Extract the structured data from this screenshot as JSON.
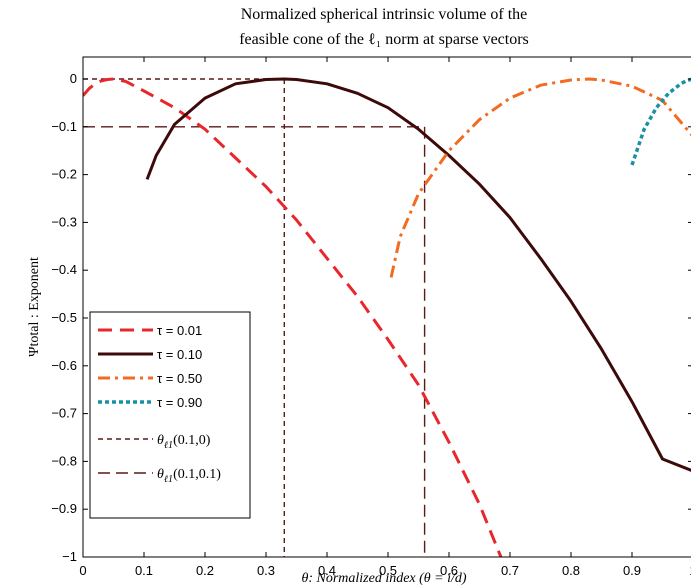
{
  "chart_data": {
    "type": "line",
    "title_lines": [
      "Normalized spherical intrinsic volume of the",
      "feasible cone of the ℓ₁ norm at sparse vectors"
    ],
    "xlabel": "θ: Normalized index (θ = i/d)",
    "ylabel": "Ψtotal : Exponent",
    "xlim": [
      0,
      1
    ],
    "ylim": [
      -1,
      0.1
    ],
    "x_ticks": [
      "0",
      "0.1",
      "0.2",
      "0.3",
      "0.4",
      "0.5",
      "0.6",
      "0.7",
      "0.8",
      "0.9",
      "1"
    ],
    "y_ticks": [
      "0",
      "-0.1",
      "-0.2",
      "-0.3",
      "-0.4",
      "-0.5",
      "-0.6",
      "-0.7",
      "-0.8",
      "-0.9",
      "-1"
    ],
    "grid": false,
    "legend_position": "bottom-left",
    "series": [
      {
        "name": "τ = 0.01",
        "color": "#e8272c",
        "dash": "dashed",
        "x": [
          0.0,
          0.01,
          0.02,
          0.03,
          0.04,
          0.05,
          0.07,
          0.1,
          0.15,
          0.2,
          0.25,
          0.3,
          0.35,
          0.4,
          0.45,
          0.5,
          0.55,
          0.6,
          0.65,
          0.685
        ],
        "y": [
          -0.035,
          -0.02,
          -0.01,
          -0.004,
          -0.001,
          0.0,
          -0.005,
          -0.025,
          -0.06,
          -0.105,
          -0.165,
          -0.225,
          -0.295,
          -0.375,
          -0.455,
          -0.545,
          -0.64,
          -0.76,
          -0.89,
          -1.0
        ]
      },
      {
        "name": "τ = 0.10",
        "color": "#3d0a0a",
        "dash": "solid",
        "x": [
          0.105,
          0.12,
          0.15,
          0.2,
          0.25,
          0.3,
          0.33,
          0.35,
          0.4,
          0.45,
          0.5,
          0.55,
          0.6,
          0.65,
          0.7,
          0.75,
          0.8,
          0.85,
          0.9,
          0.95,
          1.0
        ],
        "y": [
          -0.21,
          -0.16,
          -0.095,
          -0.04,
          -0.01,
          -0.001,
          0.0,
          -0.001,
          -0.01,
          -0.03,
          -0.06,
          -0.105,
          -0.16,
          -0.22,
          -0.29,
          -0.375,
          -0.465,
          -0.565,
          -0.675,
          -0.795,
          -0.82
        ]
      },
      {
        "name": "τ = 0.50",
        "color": "#f26b22",
        "dash": "dashdot",
        "x": [
          0.505,
          0.52,
          0.55,
          0.6,
          0.65,
          0.7,
          0.75,
          0.8,
          0.83,
          0.85,
          0.9,
          0.95,
          1.0
        ],
        "y": [
          -0.415,
          -0.33,
          -0.24,
          -0.15,
          -0.085,
          -0.04,
          -0.013,
          -0.002,
          0.0,
          -0.002,
          -0.015,
          -0.045,
          -0.12
        ]
      },
      {
        "name": "τ = 0.90",
        "color": "#1a8fa8",
        "dash": "dotted",
        "x": [
          0.9,
          0.92,
          0.94,
          0.96,
          0.98,
          0.99,
          1.0
        ],
        "y": [
          -0.18,
          -0.105,
          -0.06,
          -0.03,
          -0.01,
          -0.003,
          0.0
        ]
      }
    ],
    "reference_lines": [
      {
        "label": "θℓ1(0.1,0)",
        "label_main": "θ",
        "label_sub": "ℓ1",
        "label_args": "(0.1,0)",
        "color": "#5a1a1a",
        "dash": "short",
        "x": 0.33,
        "y": 0.0
      },
      {
        "label": "θℓ1(0.1,0.1)",
        "label_main": "θ",
        "label_sub": "ℓ1",
        "label_args": "(0.1,0.1)",
        "color": "#5a1a1a",
        "dash": "long",
        "x": 0.56,
        "y": -0.1
      }
    ]
  }
}
